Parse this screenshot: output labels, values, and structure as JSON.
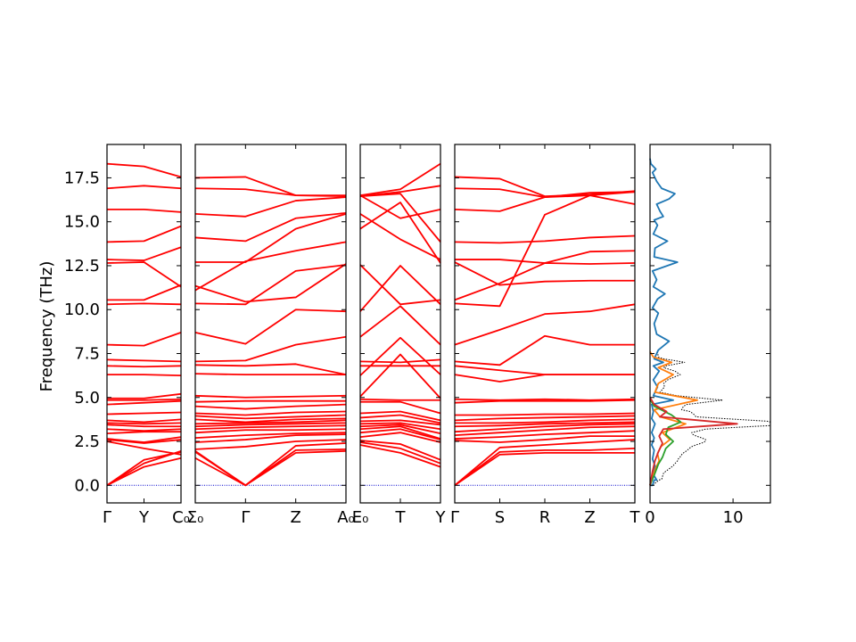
{
  "chart_data": {
    "type": "line",
    "ylabel": "Frequency (THz)",
    "ylim": [
      -1.0,
      19.4
    ],
    "yticks": [
      "0.0",
      "2.5",
      "5.0",
      "7.5",
      "10.0",
      "12.5",
      "15.0",
      "17.5"
    ],
    "band_color": "#ff0000",
    "zero_line_color": "#0000cc",
    "panels": [
      {
        "ticks": [
          "Γ",
          "Y",
          "C₀"
        ],
        "bands": [
          [
            0.0,
            1.05,
            1.55
          ],
          [
            0.0,
            1.25,
            1.95
          ],
          [
            0.0,
            1.45,
            1.9
          ],
          [
            2.5,
            2.1,
            1.75
          ],
          [
            2.6,
            2.4,
            2.6
          ],
          [
            2.65,
            2.45,
            2.75
          ],
          [
            2.95,
            3.05,
            3.05
          ],
          [
            3.2,
            3.1,
            3.2
          ],
          [
            3.45,
            3.35,
            3.35
          ],
          [
            3.55,
            3.5,
            3.55
          ],
          [
            3.7,
            3.6,
            3.75
          ],
          [
            4.05,
            4.1,
            4.15
          ],
          [
            4.6,
            4.7,
            4.8
          ],
          [
            4.85,
            4.85,
            4.9
          ],
          [
            4.95,
            4.95,
            5.2
          ],
          [
            6.3,
            6.3,
            6.25
          ],
          [
            6.8,
            6.75,
            6.8
          ],
          [
            7.15,
            7.1,
            7.05
          ],
          [
            8.0,
            7.95,
            8.7
          ],
          [
            10.3,
            10.35,
            10.3
          ],
          [
            10.55,
            10.55,
            11.4
          ],
          [
            12.65,
            12.7,
            11.3
          ],
          [
            12.85,
            12.8,
            13.55
          ],
          [
            13.85,
            13.9,
            14.75
          ],
          [
            15.7,
            15.7,
            15.55
          ],
          [
            16.9,
            17.05,
            16.9
          ],
          [
            18.3,
            18.15,
            17.55
          ]
        ]
      },
      {
        "ticks": [
          "Σ₀",
          "Γ",
          "Z",
          "A₀"
        ],
        "bands": [
          [
            1.55,
            0.0,
            1.85,
            1.95
          ],
          [
            1.9,
            0.0,
            2.0,
            2.05
          ],
          [
            1.95,
            0.0,
            2.25,
            2.4
          ],
          [
            2.05,
            2.2,
            2.5,
            2.6
          ],
          [
            2.45,
            2.6,
            2.85,
            2.9
          ],
          [
            2.7,
            2.85,
            2.95,
            3.0
          ],
          [
            3.0,
            3.15,
            3.15,
            3.2
          ],
          [
            3.2,
            3.3,
            3.35,
            3.4
          ],
          [
            3.35,
            3.45,
            3.5,
            3.55
          ],
          [
            3.5,
            3.55,
            3.6,
            3.7
          ],
          [
            3.75,
            3.6,
            3.75,
            3.8
          ],
          [
            3.95,
            3.8,
            3.9,
            4.0
          ],
          [
            4.1,
            4.0,
            4.15,
            4.2
          ],
          [
            4.5,
            4.35,
            4.5,
            4.6
          ],
          [
            4.75,
            4.8,
            4.8,
            4.8
          ],
          [
            5.1,
            5.0,
            5.05,
            5.1
          ],
          [
            6.35,
            6.3,
            6.3,
            6.3
          ],
          [
            6.85,
            6.8,
            6.9,
            6.3
          ],
          [
            7.05,
            7.1,
            8.0,
            8.45
          ],
          [
            8.7,
            8.05,
            10.0,
            9.9
          ],
          [
            10.35,
            10.3,
            12.2,
            12.55
          ],
          [
            11.35,
            10.45,
            10.7,
            12.6
          ],
          [
            11.1,
            12.75,
            13.35,
            13.85
          ],
          [
            12.7,
            12.7,
            14.6,
            15.45
          ],
          [
            14.1,
            13.9,
            15.2,
            15.5
          ],
          [
            15.45,
            15.3,
            16.2,
            16.4
          ],
          [
            16.9,
            16.85,
            16.5,
            16.45
          ],
          [
            17.5,
            17.55,
            16.5,
            16.5
          ]
        ]
      },
      {
        "ticks": [
          "E₀",
          "T",
          "Y"
        ],
        "bands": [
          [
            2.3,
            1.85,
            1.05
          ],
          [
            2.45,
            2.1,
            1.25
          ],
          [
            2.55,
            2.35,
            1.45
          ],
          [
            2.75,
            3.0,
            2.45
          ],
          [
            3.0,
            3.2,
            2.6
          ],
          [
            3.2,
            3.35,
            2.65
          ],
          [
            3.35,
            3.45,
            2.95
          ],
          [
            3.5,
            3.55,
            3.2
          ],
          [
            3.65,
            3.7,
            3.45
          ],
          [
            3.85,
            4.0,
            3.55
          ],
          [
            4.1,
            4.2,
            3.7
          ],
          [
            4.75,
            4.75,
            4.1
          ],
          [
            4.9,
            4.85,
            4.85
          ],
          [
            5.05,
            7.45,
            4.95
          ],
          [
            6.25,
            8.4,
            6.3
          ],
          [
            6.8,
            6.8,
            6.8
          ],
          [
            7.05,
            7.0,
            7.15
          ],
          [
            8.45,
            10.2,
            8.0
          ],
          [
            9.9,
            12.5,
            10.3
          ],
          [
            12.55,
            10.3,
            10.55
          ],
          [
            14.6,
            16.1,
            12.65
          ],
          [
            15.45,
            14.0,
            12.85
          ],
          [
            16.45,
            16.6,
            13.85
          ],
          [
            16.5,
            15.2,
            15.7
          ],
          [
            16.45,
            16.7,
            17.05
          ],
          [
            16.5,
            16.85,
            18.3
          ]
        ]
      },
      {
        "ticks": [
          "Γ",
          "S",
          "R",
          "Z",
          "T"
        ],
        "bands": [
          [
            0.0,
            1.75,
            1.85,
            1.85,
            1.85
          ],
          [
            0.0,
            1.9,
            2.0,
            2.0,
            2.1
          ],
          [
            0.0,
            2.15,
            2.3,
            2.45,
            2.6
          ],
          [
            2.55,
            2.45,
            2.6,
            2.8,
            2.8
          ],
          [
            2.65,
            2.75,
            2.9,
            3.0,
            3.1
          ],
          [
            2.85,
            3.0,
            3.15,
            3.3,
            3.35
          ],
          [
            3.05,
            3.2,
            3.35,
            3.45,
            3.5
          ],
          [
            3.35,
            3.4,
            3.5,
            3.55,
            3.6
          ],
          [
            3.55,
            3.55,
            3.6,
            3.7,
            3.75
          ],
          [
            3.7,
            3.8,
            3.85,
            3.9,
            3.95
          ],
          [
            4.0,
            4.0,
            4.05,
            4.05,
            4.1
          ],
          [
            4.7,
            4.8,
            4.8,
            4.8,
            4.85
          ],
          [
            4.9,
            4.85,
            4.9,
            4.85,
            4.9
          ],
          [
            6.3,
            5.9,
            6.3,
            6.3,
            6.3
          ],
          [
            6.8,
            6.55,
            6.3,
            6.3,
            6.3
          ],
          [
            7.05,
            6.85,
            8.5,
            8.0,
            8.0
          ],
          [
            8.0,
            8.85,
            9.75,
            9.9,
            10.3
          ],
          [
            10.35,
            10.2,
            15.4,
            16.5,
            16.7
          ],
          [
            12.7,
            11.4,
            11.6,
            11.65,
            11.65
          ],
          [
            10.55,
            11.5,
            12.65,
            12.6,
            12.65
          ],
          [
            12.85,
            12.85,
            12.65,
            13.3,
            13.35
          ],
          [
            13.85,
            13.8,
            13.9,
            14.1,
            14.2
          ],
          [
            15.7,
            15.6,
            16.4,
            16.5,
            16.0
          ],
          [
            16.9,
            16.85,
            16.4,
            16.65,
            16.7
          ],
          [
            17.55,
            17.45,
            16.45,
            16.55,
            16.75
          ]
        ]
      }
    ],
    "dos": {
      "xticks": [
        "0",
        "10"
      ],
      "xlim": [
        0,
        14.5
      ],
      "total_color": "#000000",
      "series": [
        {
          "color": "#1f77b4",
          "points": [
            [
              0.0,
              0.0
            ],
            [
              0.3,
              0.0
            ],
            [
              0.5,
              0.3
            ],
            [
              0.8,
              0.3
            ],
            [
              0.3,
              0.7
            ],
            [
              0.6,
              1.1
            ],
            [
              0.3,
              1.5
            ],
            [
              0.5,
              2.0
            ],
            [
              0.2,
              2.3
            ],
            [
              0.5,
              2.7
            ],
            [
              0.2,
              3.0
            ],
            [
              0.6,
              3.5
            ],
            [
              0.2,
              3.8
            ],
            [
              0.4,
              4.2
            ],
            [
              0.2,
              4.6
            ],
            [
              2.8,
              4.85
            ],
            [
              0.4,
              5.1
            ],
            [
              0.9,
              5.6
            ],
            [
              0.4,
              6.0
            ],
            [
              1.1,
              6.5
            ],
            [
              0.4,
              6.8
            ],
            [
              1.6,
              7.0
            ],
            [
              0.5,
              7.2
            ],
            [
              1.0,
              7.7
            ],
            [
              2.3,
              8.2
            ],
            [
              0.8,
              8.6
            ],
            [
              0.5,
              9.2
            ],
            [
              1.0,
              9.8
            ],
            [
              0.3,
              10.1
            ],
            [
              0.9,
              10.6
            ],
            [
              1.8,
              10.9
            ],
            [
              0.4,
              11.3
            ],
            [
              0.8,
              11.7
            ],
            [
              0.3,
              12.2
            ],
            [
              3.3,
              12.7
            ],
            [
              0.5,
              13.0
            ],
            [
              0.6,
              13.5
            ],
            [
              2.1,
              13.9
            ],
            [
              0.4,
              14.3
            ],
            [
              0.9,
              14.8
            ],
            [
              0.5,
              15.1
            ],
            [
              1.6,
              15.3
            ],
            [
              1.2,
              15.6
            ],
            [
              0.8,
              16.0
            ],
            [
              2.3,
              16.3
            ],
            [
              3.0,
              16.6
            ],
            [
              1.4,
              16.9
            ],
            [
              0.8,
              17.3
            ],
            [
              0.3,
              17.8
            ],
            [
              0.7,
              18.0
            ],
            [
              0.1,
              18.3
            ],
            [
              0.0,
              18.6
            ]
          ]
        },
        {
          "color": "#ff7f0e",
          "points": [
            [
              0.0,
              0.0
            ],
            [
              0.4,
              0.6
            ],
            [
              0.7,
              1.0
            ],
            [
              1.1,
              1.4
            ],
            [
              0.9,
              1.8
            ],
            [
              1.3,
              2.2
            ],
            [
              2.4,
              2.6
            ],
            [
              1.5,
              3.0
            ],
            [
              4.3,
              3.5
            ],
            [
              1.2,
              3.9
            ],
            [
              0.5,
              4.3
            ],
            [
              5.7,
              4.85
            ],
            [
              0.6,
              5.3
            ],
            [
              1.0,
              5.8
            ],
            [
              2.8,
              6.3
            ],
            [
              1.0,
              6.7
            ],
            [
              2.6,
              7.0
            ],
            [
              0.4,
              7.3
            ],
            [
              0.0,
              7.6
            ]
          ]
        },
        {
          "color": "#2ca02c",
          "points": [
            [
              0.0,
              0.0
            ],
            [
              0.6,
              0.7
            ],
            [
              1.0,
              1.2
            ],
            [
              1.5,
              1.6
            ],
            [
              1.9,
              2.1
            ],
            [
              2.8,
              2.5
            ],
            [
              1.9,
              2.9
            ],
            [
              2.2,
              3.3
            ],
            [
              3.7,
              3.6
            ],
            [
              2.6,
              4.0
            ],
            [
              0.5,
              4.5
            ],
            [
              0.0,
              4.9
            ]
          ]
        },
        {
          "color": "#d62728",
          "points": [
            [
              0.0,
              0.0
            ],
            [
              0.3,
              0.8
            ],
            [
              0.6,
              1.4
            ],
            [
              1.0,
              1.9
            ],
            [
              1.5,
              2.4
            ],
            [
              1.1,
              2.8
            ],
            [
              1.6,
              3.2
            ],
            [
              10.5,
              3.5
            ],
            [
              1.2,
              3.9
            ],
            [
              2.0,
              4.2
            ],
            [
              0.5,
              4.6
            ],
            [
              0.0,
              5.0
            ]
          ]
        }
      ]
    }
  }
}
